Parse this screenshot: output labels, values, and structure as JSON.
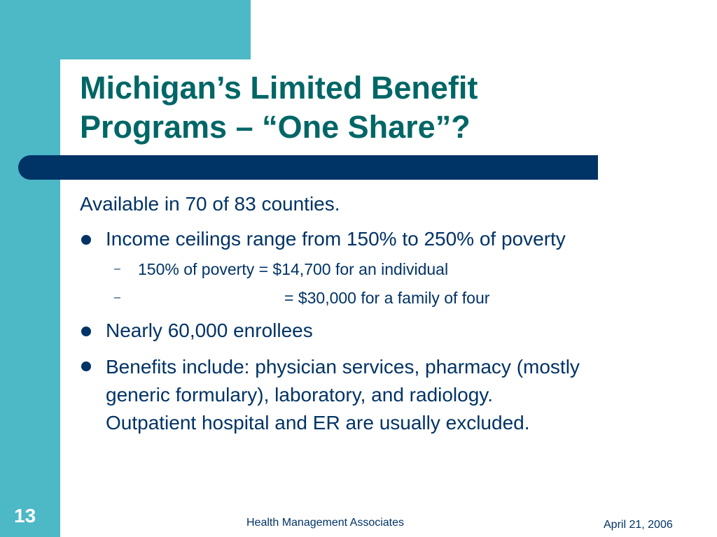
{
  "title": {
    "line1": "Michigan’s Limited Benefit",
    "line2": "Programs – “One Share”?"
  },
  "body": {
    "intro": "Available in 70 of 83 counties.",
    "bullet1": "Income ceilings range from 150% to 250% of poverty",
    "sub1": "150% of poverty = $14,700 for an individual",
    "sub2": "= $30,000 for a family of four",
    "bullet2": "Nearly 60,000 enrollees",
    "bullet3_lines": [
      "Benefits include: physician services, pharmacy (mostly",
      "generic formulary), laboratory, and radiology.",
      "Outpatient hospital and ER are usually excluded."
    ],
    "dash": "–"
  },
  "footer": {
    "slide_number": "13",
    "organization": "Health Management Associates",
    "date": "April 21, 2006"
  },
  "colors": {
    "teal": "#4db8c6",
    "navy": "#003366",
    "title_green": "#006666"
  }
}
